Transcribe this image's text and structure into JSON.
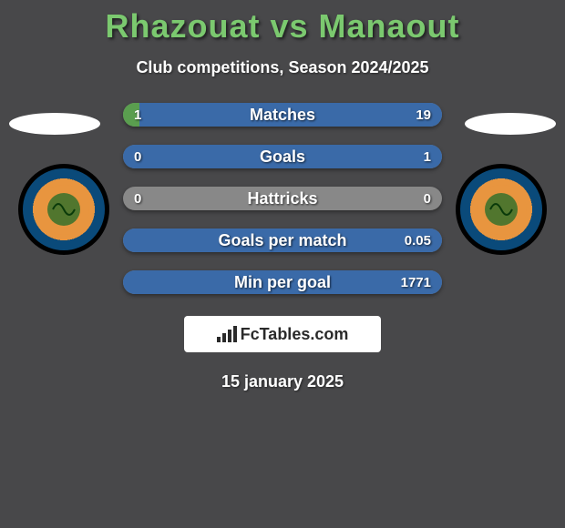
{
  "title": "Rhazouat vs Manaout",
  "subtitle": "Club competitions, Season 2024/2025",
  "date": "15 january 2025",
  "fctables_label": "FcTables.com",
  "colors": {
    "title": "#7bc96f",
    "bg": "#48484a",
    "bar_left": "#5a9e4f",
    "bar_right": "#3a6aa8",
    "bar_neutral": "#888888",
    "badge_ring": "#0a4a7a",
    "badge_center": "#e8953f"
  },
  "bars": [
    {
      "label": "Matches",
      "left": "1",
      "right": "19",
      "left_pct": 5,
      "right_pct": 95
    },
    {
      "label": "Goals",
      "left": "0",
      "right": "1",
      "left_pct": 0,
      "right_pct": 100
    },
    {
      "label": "Hattricks",
      "left": "0",
      "right": "0",
      "left_pct": 0,
      "right_pct": 0
    },
    {
      "label": "Goals per match",
      "left": "",
      "right": "0.05",
      "left_pct": 0,
      "right_pct": 100
    },
    {
      "label": "Min per goal",
      "left": "",
      "right": "1771",
      "left_pct": 0,
      "right_pct": 100
    }
  ]
}
